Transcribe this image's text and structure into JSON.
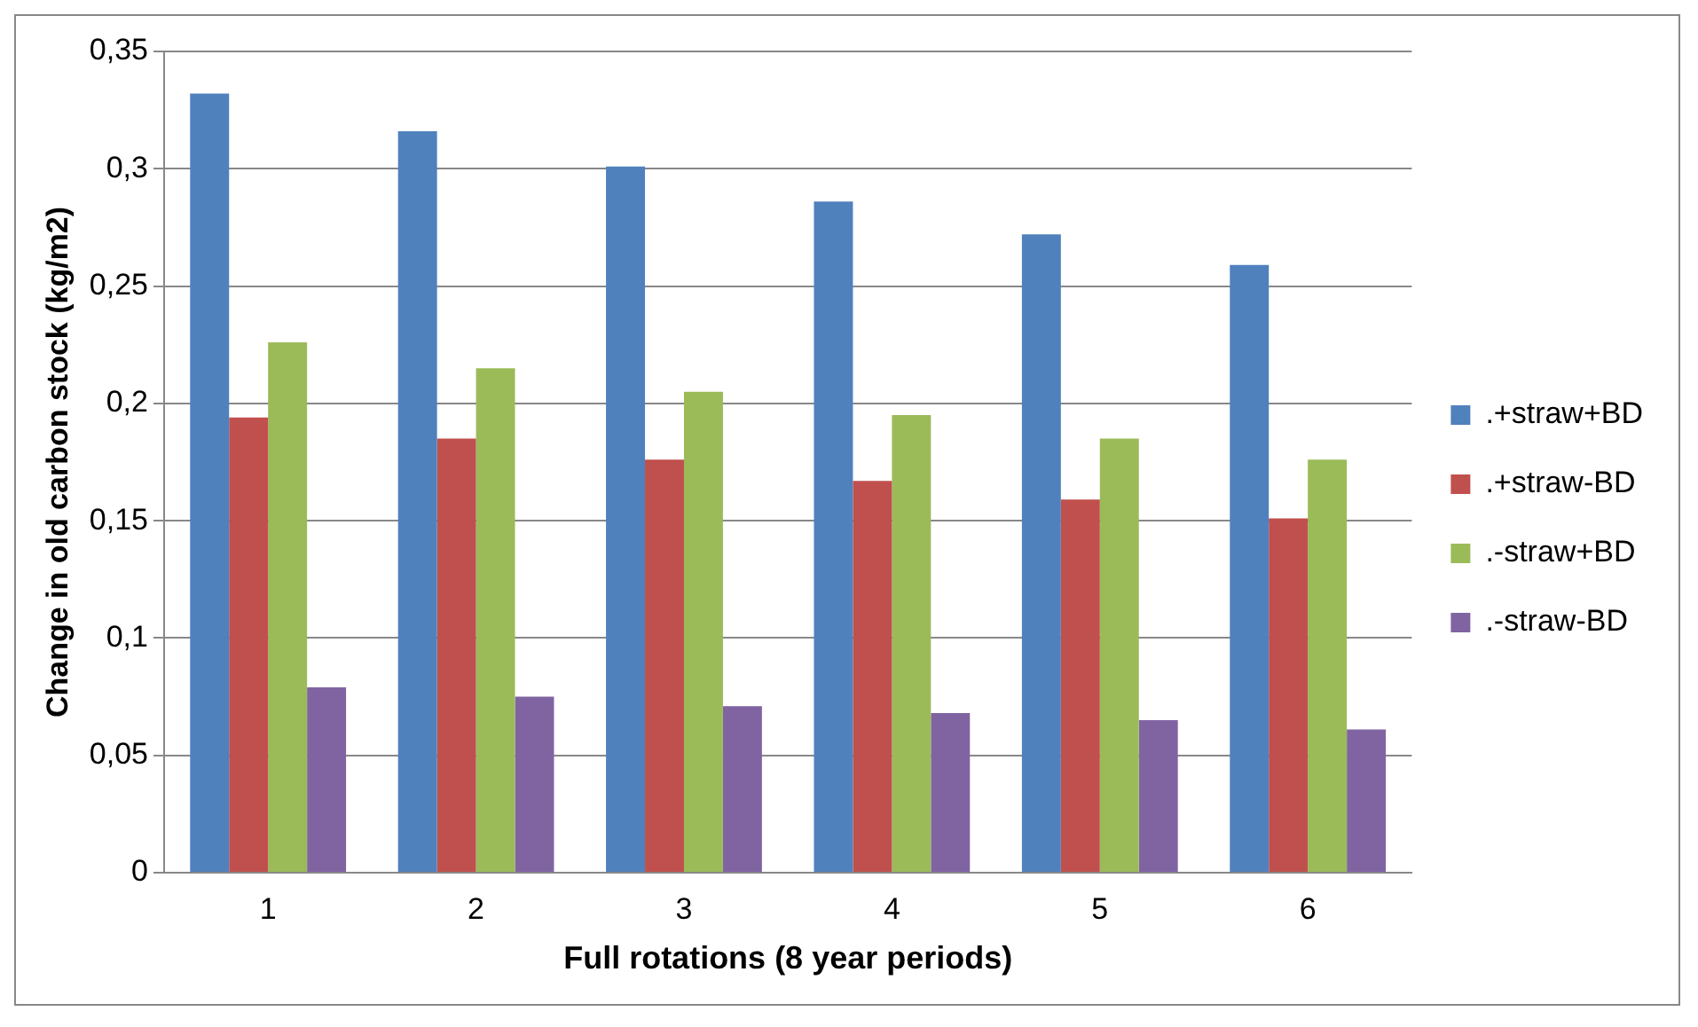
{
  "chart_data": {
    "type": "bar",
    "xlabel": "Full rotations (8 year periods)",
    "ylabel": "Change in old carbon stock (kg/m2)",
    "categories": [
      "1",
      "2",
      "3",
      "4",
      "5",
      "6"
    ],
    "series": [
      {
        "name": ".+straw+BD",
        "color": "#4f81bd",
        "values": [
          0.332,
          0.316,
          0.301,
          0.286,
          0.272,
          0.259
        ]
      },
      {
        "name": ".+straw-BD",
        "color": "#c0504d",
        "values": [
          0.194,
          0.185,
          0.176,
          0.167,
          0.159,
          0.151
        ]
      },
      {
        "name": ".-straw+BD",
        "color": "#9bbb59",
        "values": [
          0.226,
          0.215,
          0.205,
          0.195,
          0.185,
          0.176
        ]
      },
      {
        "name": ".-straw-BD",
        "color": "#8064a2",
        "values": [
          0.079,
          0.075,
          0.071,
          0.068,
          0.065,
          0.061
        ]
      }
    ],
    "ylim": [
      0,
      0.35
    ],
    "yticks": [
      0,
      {
        "value": 0.05,
        "label": "0,05"
      },
      {
        "value": 0.1,
        "label": "0,1"
      },
      {
        "value": 0.15,
        "label": "0,15"
      },
      {
        "value": 0.2,
        "label": "0,2"
      },
      {
        "value": 0.25,
        "label": "0,25"
      },
      {
        "value": 0.3,
        "label": "0,3"
      },
      {
        "value": 0.35,
        "label": "0,35"
      }
    ],
    "grid": "y",
    "legend": "right"
  }
}
